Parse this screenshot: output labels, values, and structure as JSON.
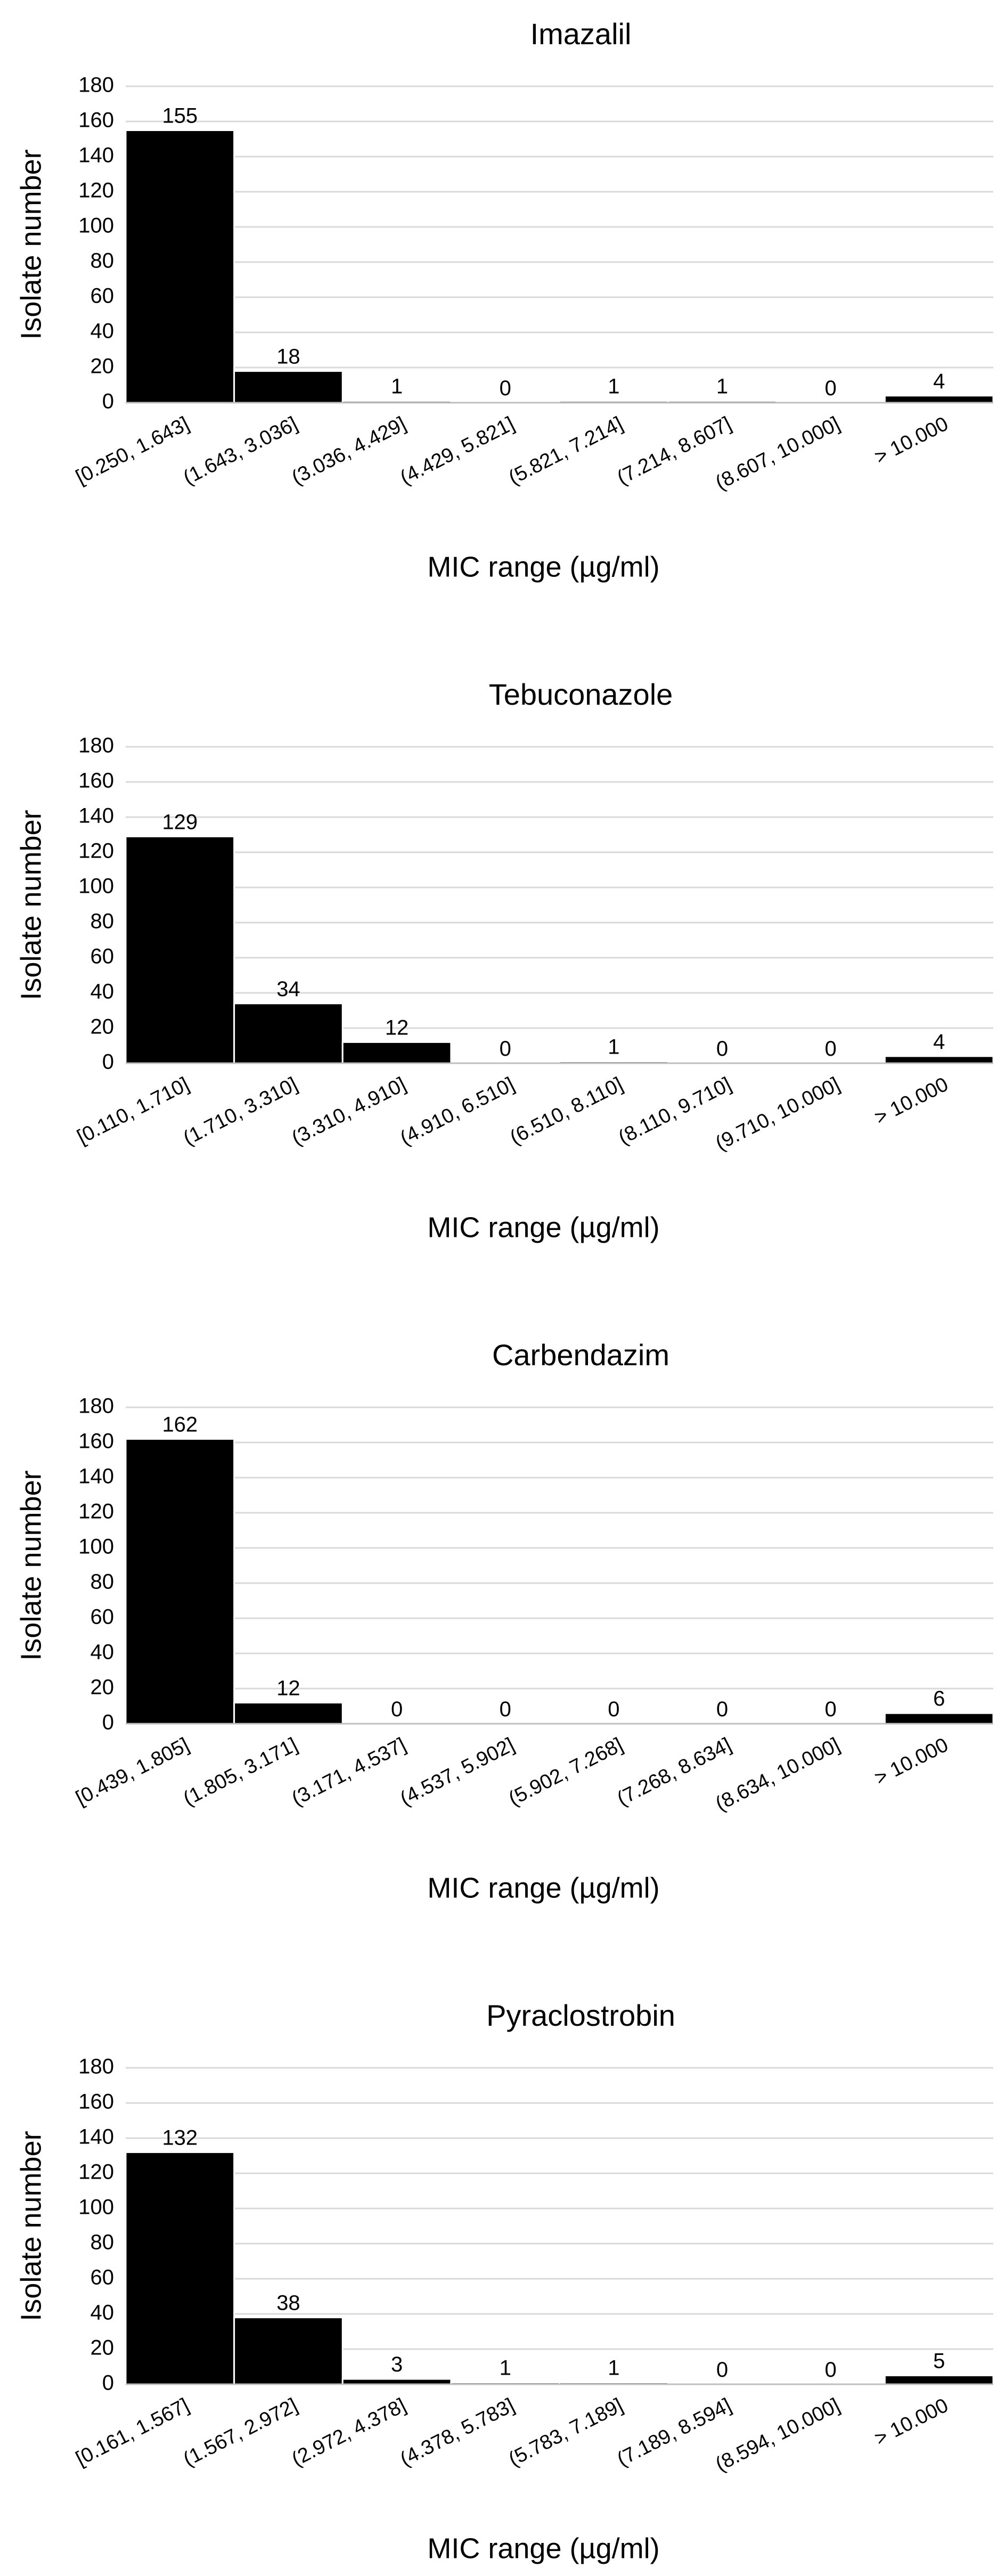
{
  "chart_data": [
    {
      "type": "bar",
      "title": "Imazalil",
      "xlabel": "MIC range (µg/ml)",
      "ylabel": "Isolate number",
      "ylim": [
        0,
        180
      ],
      "yticks": [
        "0",
        "20",
        "40",
        "60",
        "80",
        "100",
        "120",
        "140",
        "160",
        "180"
      ],
      "grid": true,
      "categories": [
        "[0.250, 1.643]",
        "(1.643, 3.036]",
        "(3.036, 4.429]",
        "(4.429, 5.821]",
        "(5.821, 7.214]",
        "(7.214, 8.607]",
        "(8.607, 10.000]",
        "> 10.000"
      ],
      "values": [
        155,
        18,
        1,
        0,
        1,
        1,
        0,
        4
      ],
      "value_labels": [
        "155",
        "18",
        "1",
        "0",
        "1",
        "1",
        "0",
        "4"
      ]
    },
    {
      "type": "bar",
      "title": "Tebuconazole",
      "xlabel": "MIC range (µg/ml)",
      "ylabel": "Isolate number",
      "ylim": [
        0,
        180
      ],
      "yticks": [
        "0",
        "20",
        "40",
        "60",
        "80",
        "100",
        "120",
        "140",
        "160",
        "180"
      ],
      "grid": true,
      "categories": [
        "[0.110, 1.710]",
        "(1.710, 3.310]",
        "(3.310, 4.910]",
        "(4.910, 6.510]",
        "(6.510, 8.110]",
        "(8.110, 9.710]",
        "(9.710, 10.000]",
        "> 10.000"
      ],
      "values": [
        129,
        34,
        12,
        0,
        1,
        0,
        0,
        4
      ],
      "value_labels": [
        "129",
        "34",
        "12",
        "0",
        "1",
        "0",
        "0",
        "4"
      ]
    },
    {
      "type": "bar",
      "title": "Carbendazim",
      "xlabel": "MIC range (µg/ml)",
      "ylabel": "Isolate number",
      "ylim": [
        0,
        180
      ],
      "yticks": [
        "0",
        "20",
        "40",
        "60",
        "80",
        "100",
        "120",
        "140",
        "160",
        "180"
      ],
      "grid": true,
      "categories": [
        "[0.439, 1.805]",
        "(1.805, 3.171]",
        "(3.171, 4.537]",
        "(4.537, 5.902]",
        "(5.902, 7.268]",
        "(7.268, 8.634]",
        "(8.634, 10.000]",
        "> 10.000"
      ],
      "values": [
        162,
        12,
        0,
        0,
        0,
        0,
        0,
        6
      ],
      "value_labels": [
        "162",
        "12",
        "0",
        "0",
        "0",
        "0",
        "0",
        "6"
      ]
    },
    {
      "type": "bar",
      "title": "Pyraclostrobin",
      "xlabel": "MIC range (µg/ml)",
      "ylabel": "Isolate number",
      "ylim": [
        0,
        180
      ],
      "yticks": [
        "0",
        "20",
        "40",
        "60",
        "80",
        "100",
        "120",
        "140",
        "160",
        "180"
      ],
      "grid": true,
      "categories": [
        "[0.161, 1.567]",
        "(1.567, 2.972]",
        "(2.972, 4.378]",
        "(4.378, 5.783]",
        "(5.783, 7.189]",
        "(7.189, 8.594]",
        "(8.594, 10.000]",
        "> 10.000"
      ],
      "values": [
        132,
        38,
        3,
        1,
        1,
        0,
        0,
        5
      ],
      "value_labels": [
        "132",
        "38",
        "3",
        "1",
        "1",
        "0",
        "0",
        "5"
      ]
    }
  ],
  "colors": {
    "bar": "#000000",
    "bar_border": "#ffffff",
    "grid": "#d9d9d9",
    "axis": "#bfbfbf",
    "text": "#000000",
    "background": "#ffffff"
  }
}
